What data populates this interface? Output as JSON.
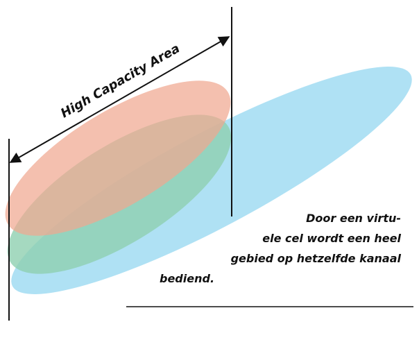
{
  "diagram": {
    "arrow_label": "High Capacity Area",
    "caption_lines": [
      "Door een virtu-",
      "ele cel wordt een heel",
      "gebied op hetzelfde kanaal",
      "bediend."
    ],
    "colors": {
      "red_ellipse": "#f0a890",
      "green_ellipse": "#8fd0b0",
      "blue_ellipse": "#a6def3",
      "lines": "#111111"
    }
  }
}
